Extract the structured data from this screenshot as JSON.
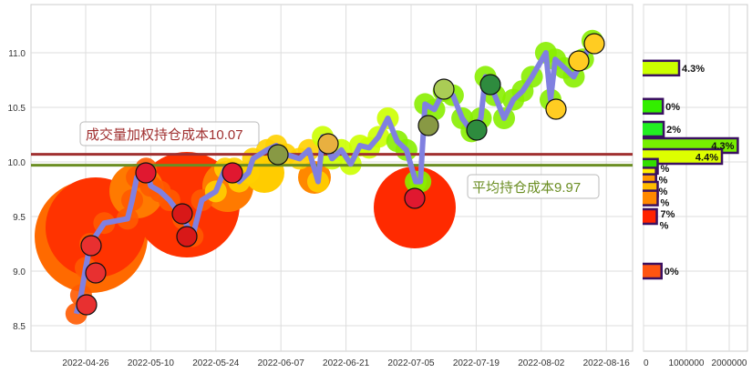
{
  "chart_data": [
    {
      "type": "line",
      "title": "",
      "xlabel": "",
      "ylabel": "",
      "ylim": [
        8.25,
        11.42
      ],
      "grid": true,
      "x_ticks": [
        "2022-04-26",
        "2022-05-10",
        "2022-05-24",
        "2022-06-07",
        "2022-06-21",
        "2022-07-05",
        "2022-07-19",
        "2022-08-02",
        "2022-08-16"
      ],
      "y_ticks": [
        "8.5",
        "9.0",
        "9.5",
        "10.0",
        "10.5",
        "11.0"
      ],
      "line_color": "#8080e0",
      "x": [
        "2022-04-24",
        "2022-04-25",
        "2022-04-26",
        "2022-04-27",
        "2022-04-30",
        "2022-05-05",
        "2022-05-06",
        "2022-05-07",
        "2022-05-09",
        "2022-05-10",
        "2022-05-12",
        "2022-05-14",
        "2022-05-17",
        "2022-05-19",
        "2022-05-21",
        "2022-05-24",
        "2022-05-26",
        "2022-05-28",
        "2022-05-29",
        "2022-05-31",
        "2022-06-01",
        "2022-06-04",
        "2022-06-06",
        "2022-06-08",
        "2022-06-11",
        "2022-06-13",
        "2022-06-15",
        "2022-06-16",
        "2022-06-18",
        "2022-06-20",
        "2022-06-22",
        "2022-06-24",
        "2022-06-26",
        "2022-06-28",
        "2022-06-30",
        "2022-07-02",
        "2022-07-04",
        "2022-07-06",
        "2022-07-07",
        "2022-07-08",
        "2022-07-10",
        "2022-07-12",
        "2022-07-14",
        "2022-07-16",
        "2022-07-18",
        "2022-07-20",
        "2022-07-21",
        "2022-07-23",
        "2022-07-25",
        "2022-07-27",
        "2022-07-29",
        "2022-07-31",
        "2022-08-03",
        "2022-08-04",
        "2022-08-05",
        "2022-08-07",
        "2022-08-09",
        "2022-08-11",
        "2022-08-13"
      ],
      "y": [
        8.61,
        8.78,
        9.03,
        9.25,
        9.44,
        9.48,
        9.65,
        9.86,
        9.94,
        9.78,
        9.73,
        9.65,
        9.48,
        9.32,
        9.65,
        9.73,
        9.94,
        9.94,
        9.82,
        9.9,
        10.03,
        10.11,
        10.15,
        10.07,
        10.03,
        10.11,
        9.82,
        10.23,
        10.03,
        10.11,
        9.98,
        10.15,
        10.13,
        10.23,
        10.4,
        10.19,
        10.11,
        9.82,
        9.82,
        10.53,
        10.48,
        10.65,
        10.61,
        10.4,
        10.28,
        10.4,
        10.78,
        10.61,
        10.4,
        10.57,
        10.65,
        10.78,
        11.0,
        10.57,
        10.94,
        10.86,
        10.78,
        10.94,
        11.11
      ],
      "reference_lines": [
        {
          "label": "成交量加权持仓成本10.07",
          "value": 10.07,
          "color": "#a03030"
        },
        {
          "label": "平均持仓成本9.97",
          "value": 9.97,
          "color": "#6b8e23"
        }
      ]
    },
    {
      "type": "bar",
      "orientation": "horizontal",
      "xlim": [
        0,
        2250000
      ],
      "x_ticks": [
        "0",
        "1000000",
        "2000000"
      ],
      "bars": [
        {
          "price": 10.86,
          "value": 830000,
          "label": "4.3%",
          "color": "#ccff00"
        },
        {
          "price": 10.51,
          "value": 450000,
          "label": "0%",
          "color": "#33ee00"
        },
        {
          "price": 10.3,
          "value": 470000,
          "label": "2%",
          "color": "#22ee22"
        },
        {
          "price": 10.15,
          "value": 2200000,
          "label": "4.3%",
          "color": "#77ee00"
        },
        {
          "price": 10.05,
          "value": 1830000,
          "label": "4.4%",
          "color": "#ddff00"
        },
        {
          "price": 9.96,
          "value": 330000,
          "label": "%",
          "color": "#33dd00"
        },
        {
          "price": 9.88,
          "value": 290000,
          "label": "%",
          "color": "#ffee00"
        },
        {
          "price": 9.82,
          "value": 290000,
          "label": "%",
          "color": "#ff9900"
        },
        {
          "price": 9.75,
          "value": 330000,
          "label": "%",
          "color": "#ffbb00"
        },
        {
          "price": 9.67,
          "value": 330000,
          "label": "7%",
          "color": "#ff8800"
        },
        {
          "price": 9.5,
          "value": 310000,
          "label": "%",
          "color": "#ff2200"
        },
        {
          "price": 9.0,
          "value": 420000,
          "label": "0%",
          "color": "#ff5511"
        }
      ]
    }
  ]
}
